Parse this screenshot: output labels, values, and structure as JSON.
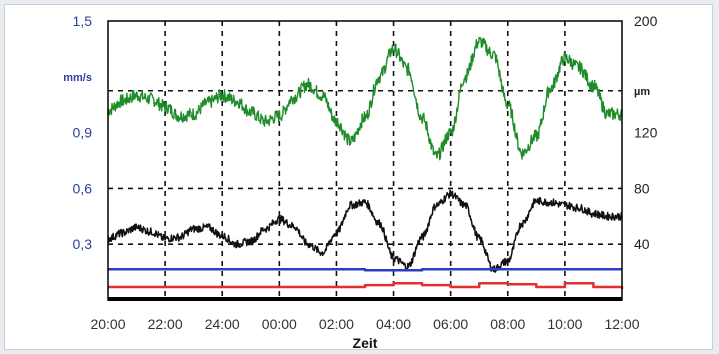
{
  "chart_data": {
    "type": "line",
    "xlabel": "Zeit",
    "x_ticks": [
      "20:00",
      "22:00",
      "24:00",
      "00:00",
      "02:00",
      "04:00",
      "06:00",
      "08:00",
      "10:00",
      "12:00"
    ],
    "left_axis": {
      "unit": "mm/s",
      "ticks": [
        "1,5",
        "0,9",
        "0,6",
        "0,3"
      ],
      "range": [
        0,
        1.5
      ],
      "color": "#2f3f9a"
    },
    "right_axis": {
      "unit": "µm",
      "ticks": [
        "200",
        "120",
        "80",
        "40"
      ],
      "range": [
        0,
        200
      ],
      "color": "#222222"
    },
    "grid": true,
    "series": [
      {
        "axis": "left",
        "color": "#1f8c2a",
        "x": [
          0,
          0.5,
          1,
          1.5,
          2,
          2.5,
          3,
          3.5,
          4,
          4.5,
          5,
          5.5,
          6,
          6.5,
          7,
          7.5,
          8,
          8.5,
          9,
          9.5,
          10,
          10.5,
          11,
          11.5,
          12,
          12.5,
          13,
          13.5,
          14,
          14.5,
          15,
          15.5,
          16,
          16.5,
          17,
          17.5,
          18
        ],
        "values": [
          1.02,
          1.07,
          1.1,
          1.08,
          1.04,
          0.99,
          1.0,
          1.06,
          1.1,
          1.07,
          1.01,
          0.96,
          0.99,
          1.09,
          1.16,
          1.1,
          0.96,
          0.85,
          0.98,
          1.2,
          1.35,
          1.24,
          0.98,
          0.77,
          0.9,
          1.2,
          1.39,
          1.32,
          1.05,
          0.79,
          0.88,
          1.14,
          1.3,
          1.25,
          1.15,
          1.0,
          1.0
        ]
      },
      {
        "axis": "right",
        "color": "#111111",
        "x": [
          0,
          0.5,
          1,
          1.5,
          2,
          2.5,
          3,
          3.5,
          4,
          4.5,
          5,
          5.5,
          6,
          6.5,
          7,
          7.5,
          8,
          8.5,
          9,
          9.5,
          10,
          10.5,
          11,
          11.5,
          12,
          12.5,
          13,
          13.5,
          14,
          14.5,
          15,
          15.5,
          16,
          16.5,
          17,
          17.5,
          18
        ],
        "values": [
          44,
          48,
          52,
          49,
          44,
          45,
          51,
          52,
          46,
          40,
          42,
          51,
          58,
          53,
          40,
          34,
          48,
          68,
          70,
          55,
          30,
          24,
          45,
          68,
          76,
          68,
          44,
          22,
          28,
          55,
          71,
          70,
          68,
          66,
          62,
          60,
          60
        ]
      },
      {
        "axis": "left",
        "color": "#2a3cc8",
        "x": [
          0,
          4,
          8,
          9,
          10,
          11,
          12,
          13,
          14,
          15,
          16,
          17,
          18
        ],
        "values": [
          0.165,
          0.165,
          0.165,
          0.16,
          0.16,
          0.165,
          0.165,
          0.165,
          0.165,
          0.165,
          0.165,
          0.165,
          0.165
        ]
      },
      {
        "axis": "left",
        "color": "#e03030",
        "x": [
          0,
          4,
          8,
          9,
          10,
          11,
          12,
          13,
          14,
          15,
          16,
          17,
          18
        ],
        "values": [
          0.07,
          0.07,
          0.07,
          0.08,
          0.09,
          0.08,
          0.07,
          0.09,
          0.085,
          0.07,
          0.09,
          0.07,
          0.06
        ]
      }
    ]
  }
}
